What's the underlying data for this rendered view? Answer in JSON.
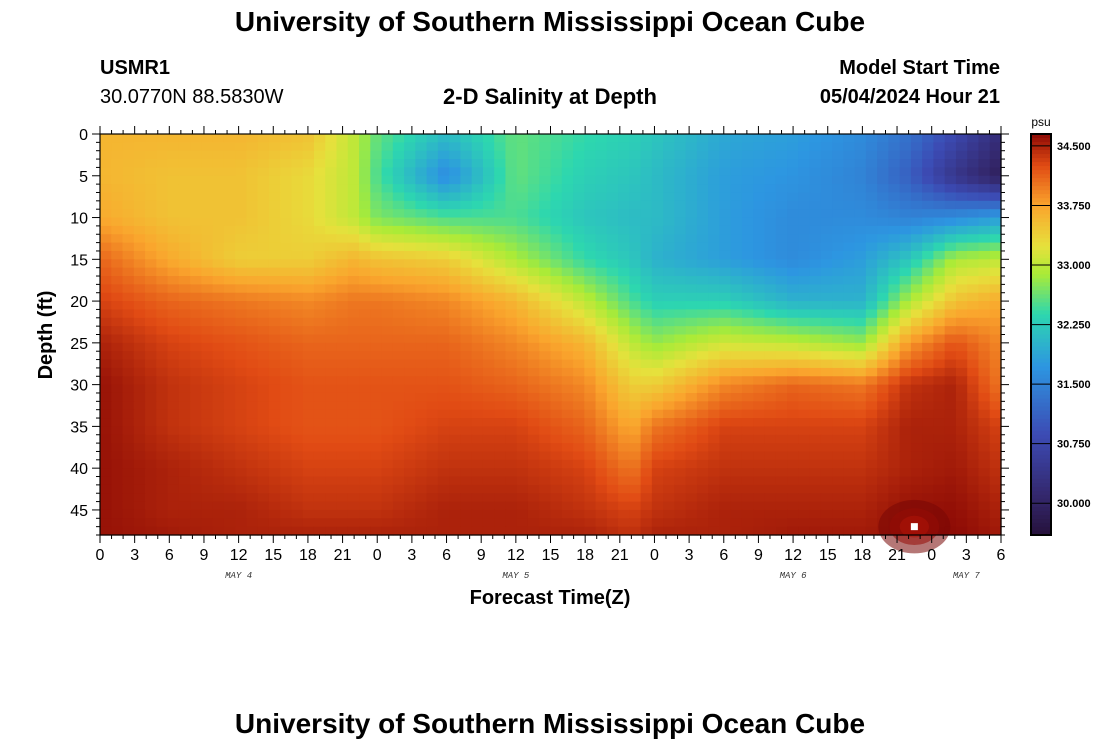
{
  "title": "University of Southern Mississippi Ocean Cube",
  "footer_title": "University of Southern Mississippi Ocean Cube",
  "station": {
    "id": "USMR1",
    "coords": "30.0770N  88.5830W"
  },
  "plot_title": "2-D Salinity at Depth",
  "model_start": {
    "label": "Model Start Time",
    "value": "05/04/2024 Hour 21"
  },
  "chart_data": {
    "type": "heatmap",
    "title": "2-D Salinity at Depth",
    "xlabel": "Forecast Time(Z)",
    "ylabel": "Depth (ft)",
    "x_tick_labels": [
      "0",
      "3",
      "6",
      "9",
      "12",
      "15",
      "18",
      "21",
      "0",
      "3",
      "6",
      "9",
      "12",
      "15",
      "18",
      "21",
      "0",
      "3",
      "6",
      "9",
      "12",
      "15",
      "18",
      "21",
      "0",
      "3",
      "6"
    ],
    "x_range_hours": [
      0,
      78
    ],
    "date_labels": [
      {
        "text": "MAY 4",
        "hour": 12
      },
      {
        "text": "MAY 5",
        "hour": 36
      },
      {
        "text": "MAY 6",
        "hour": 60
      },
      {
        "text": "MAY 7",
        "hour": 75
      }
    ],
    "y_ticks": [
      0,
      5,
      10,
      15,
      20,
      25,
      30,
      35,
      40,
      45
    ],
    "y_range": [
      0,
      48
    ],
    "y_inverted": true,
    "colorbar": {
      "unit": "psu",
      "range": [
        29.6,
        34.65
      ],
      "ticks": [
        34.5,
        33.75,
        33.0,
        32.25,
        31.5,
        30.75,
        30.0
      ],
      "tick_labels": [
        "34.500",
        "33.750",
        "33.000",
        "32.250",
        "31.500",
        "30.750",
        "30.000"
      ]
    },
    "field_description": "approximate salinity (psu) by forecast hour and depth",
    "salinity_grid": {
      "hours": [
        0,
        6,
        12,
        18,
        22,
        24,
        30,
        36,
        42,
        46,
        48,
        54,
        60,
        66,
        70,
        74,
        78
      ],
      "depths": [
        0,
        5,
        10,
        15,
        20,
        25,
        30,
        35,
        40,
        45,
        48
      ],
      "values": [
        [
          33.6,
          33.6,
          33.6,
          33.5,
          33.0,
          32.6,
          32.1,
          32.6,
          32.4,
          32.3,
          32.2,
          31.9,
          31.8,
          31.6,
          31.3,
          30.8,
          30.2
        ],
        [
          33.6,
          33.5,
          33.5,
          33.3,
          33.0,
          32.5,
          31.6,
          32.6,
          32.3,
          32.2,
          32.1,
          31.8,
          31.7,
          31.5,
          31.1,
          30.4,
          29.9
        ],
        [
          33.7,
          33.5,
          33.5,
          33.3,
          33.0,
          32.7,
          32.5,
          32.5,
          32.2,
          32.1,
          32.1,
          31.8,
          31.6,
          31.6,
          31.5,
          31.6,
          31.8
        ],
        [
          34.1,
          33.7,
          33.4,
          33.4,
          33.6,
          33.5,
          33.4,
          32.9,
          32.4,
          32.2,
          32.0,
          31.8,
          31.6,
          31.8,
          32.2,
          32.9,
          33.0
        ],
        [
          34.3,
          34.1,
          34.0,
          33.9,
          34.0,
          34.0,
          33.9,
          33.6,
          33.0,
          32.5,
          32.3,
          32.3,
          32.0,
          32.0,
          32.9,
          33.5,
          33.7
        ],
        [
          34.5,
          34.3,
          34.2,
          34.1,
          34.1,
          34.1,
          34.1,
          33.9,
          33.6,
          33.0,
          32.8,
          33.1,
          33.0,
          32.8,
          33.8,
          34.2,
          33.9
        ],
        [
          34.6,
          34.4,
          34.3,
          34.2,
          34.2,
          34.2,
          34.2,
          34.1,
          33.9,
          33.4,
          33.4,
          33.9,
          34.1,
          34.0,
          34.4,
          34.5,
          34.0
        ],
        [
          34.6,
          34.4,
          34.3,
          34.2,
          34.2,
          34.2,
          34.3,
          34.3,
          34.1,
          33.7,
          34.0,
          34.3,
          34.3,
          34.3,
          34.5,
          34.5,
          34.3
        ],
        [
          34.6,
          34.5,
          34.4,
          34.3,
          34.3,
          34.3,
          34.4,
          34.4,
          34.3,
          34.0,
          34.3,
          34.4,
          34.4,
          34.4,
          34.5,
          34.55,
          34.4
        ],
        [
          34.6,
          34.5,
          34.5,
          34.4,
          34.4,
          34.4,
          34.5,
          34.5,
          34.4,
          34.3,
          34.4,
          34.5,
          34.5,
          34.5,
          34.6,
          34.62,
          34.5
        ],
        [
          34.6,
          34.55,
          34.5,
          34.5,
          34.5,
          34.5,
          34.5,
          34.5,
          34.5,
          34.4,
          34.5,
          34.5,
          34.55,
          34.55,
          34.6,
          34.65,
          34.55
        ]
      ]
    },
    "marker": {
      "hour": 70.5,
      "depth": 47
    }
  }
}
